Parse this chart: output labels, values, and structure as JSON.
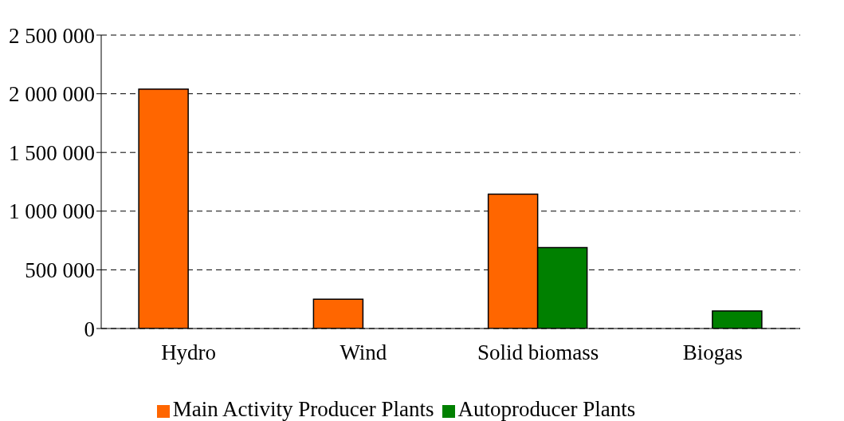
{
  "chart_data": {
    "type": "bar",
    "categories": [
      "Hydro",
      "Wind",
      "Solid biomass",
      "Biogas"
    ],
    "series": [
      {
        "name": "Main Activity Producer Plants",
        "color": "#ff6600",
        "values": [
          2040000,
          250000,
          1145000,
          0
        ]
      },
      {
        "name": "Autoproducer Plants",
        "color": "#008000",
        "values": [
          0,
          null,
          690000,
          150000
        ]
      }
    ],
    "ylim": [
      0,
      2500000
    ],
    "yticks": [
      0,
      {
        "value": 500000,
        "label": "500 000"
      },
      {
        "value": 1000000,
        "label": "1 000 000"
      },
      {
        "value": 1500000,
        "label": "1 500 000"
      },
      {
        "value": 2000000,
        "label": "2 000 000"
      },
      {
        "value": 2500000,
        "label": "2 500 000"
      }
    ],
    "grid": "y",
    "legend": "bottom"
  }
}
